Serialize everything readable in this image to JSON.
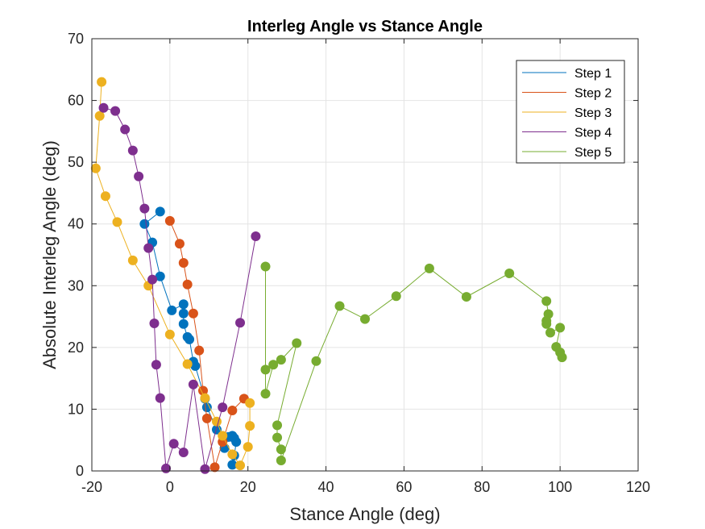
{
  "chart_data": {
    "type": "scatter",
    "title": "Interleg Angle vs Stance Angle",
    "xlabel": "Stance Angle (deg)",
    "ylabel": "Absolute Interleg Angle (deg)",
    "xlim": [
      -20,
      120
    ],
    "ylim": [
      0,
      70
    ],
    "xticks": [
      -20,
      0,
      20,
      40,
      60,
      80,
      100,
      120
    ],
    "yticks": [
      0,
      10,
      20,
      30,
      40,
      50,
      60,
      70
    ],
    "xtick_labels": [
      "-20",
      "0",
      "20",
      "40",
      "60",
      "80",
      "100",
      "120"
    ],
    "ytick_labels": [
      "0",
      "10",
      "20",
      "30",
      "40",
      "50",
      "60",
      "70"
    ],
    "grid": true,
    "legend_position": "top-right",
    "series": [
      {
        "name": "Step 1",
        "color": "#0072BD",
        "points": [
          [
            -2.5,
            42
          ],
          [
            -6.5,
            40
          ],
          [
            -4.5,
            37
          ],
          [
            -2.5,
            31.5
          ],
          [
            0.5,
            26
          ],
          [
            3.5,
            27
          ],
          [
            3.5,
            25.5
          ],
          [
            3.5,
            23.8
          ],
          [
            4.5,
            21.7
          ],
          [
            5,
            21.3
          ],
          [
            6,
            17.7
          ],
          [
            6.5,
            17
          ],
          [
            9,
            11.7
          ],
          [
            9.5,
            10.3
          ],
          [
            12,
            6.7
          ],
          [
            14,
            3.7
          ],
          [
            15,
            5.5
          ],
          [
            16,
            5.7
          ],
          [
            16.5,
            5.3
          ],
          [
            17,
            4.7
          ],
          [
            16.5,
            2.5
          ],
          [
            16,
            1
          ]
        ]
      },
      {
        "name": "Step 2",
        "color": "#D95319",
        "points": [
          [
            0,
            40.5
          ],
          [
            2.5,
            36.8
          ],
          [
            3.5,
            33.7
          ],
          [
            4.5,
            30.2
          ],
          [
            6,
            25.5
          ],
          [
            7.5,
            19.5
          ],
          [
            8.5,
            13
          ],
          [
            9.5,
            8.5
          ],
          [
            11.5,
            0.6
          ],
          [
            13.5,
            4.7
          ],
          [
            16,
            9.8
          ],
          [
            19,
            11.7
          ]
        ]
      },
      {
        "name": "Step 3",
        "color": "#EDB120",
        "points": [
          [
            -17.5,
            63
          ],
          [
            -18,
            57.5
          ],
          [
            -19,
            49
          ],
          [
            -16.5,
            44.5
          ],
          [
            -13.5,
            40.3
          ],
          [
            -9.5,
            34.1
          ],
          [
            -5.5,
            30
          ],
          [
            0,
            22.1
          ],
          [
            4.5,
            17.3
          ],
          [
            9,
            11.8
          ],
          [
            12,
            8
          ],
          [
            13.5,
            5.7
          ],
          [
            16,
            2.7
          ],
          [
            18,
            0.9
          ],
          [
            20,
            3.9
          ],
          [
            20.5,
            7.3
          ],
          [
            20.5,
            11
          ]
        ]
      },
      {
        "name": "Step 4",
        "color": "#7E2F8E",
        "points": [
          [
            -17,
            58.8
          ],
          [
            -14,
            58.3
          ],
          [
            -11.5,
            55.3
          ],
          [
            -9.5,
            51.9
          ],
          [
            -8,
            47.7
          ],
          [
            -6.5,
            42.5
          ],
          [
            -5.5,
            36.1
          ],
          [
            -4.5,
            31
          ],
          [
            -4,
            23.9
          ],
          [
            -3.5,
            17.2
          ],
          [
            -2.5,
            11.8
          ],
          [
            -1,
            0.4
          ],
          [
            1,
            4.4
          ],
          [
            3.5,
            3
          ],
          [
            6,
            14
          ],
          [
            9,
            0.3
          ],
          [
            13.5,
            10.3
          ],
          [
            18,
            24
          ],
          [
            22,
            38
          ]
        ]
      },
      {
        "name": "Step 5",
        "color": "#77AC30",
        "points": [
          [
            24.5,
            33.1
          ],
          [
            24.5,
            16.4
          ],
          [
            24.5,
            12.5
          ],
          [
            26.5,
            17.2
          ],
          [
            28.5,
            18
          ],
          [
            32.5,
            20.7
          ],
          [
            27.5,
            7.4
          ],
          [
            27.5,
            5.4
          ],
          [
            28.5,
            3.5
          ],
          [
            28.5,
            1.7
          ],
          [
            37.5,
            17.8
          ],
          [
            43.5,
            26.7
          ],
          [
            50,
            24.6
          ],
          [
            58,
            28.3
          ],
          [
            66.5,
            32.8
          ],
          [
            76,
            28.2
          ],
          [
            87,
            32
          ],
          [
            96.5,
            27.5
          ],
          [
            97,
            25.4
          ],
          [
            96.5,
            24.3
          ],
          [
            96.5,
            23.8
          ],
          [
            97.5,
            22.4
          ],
          [
            100,
            23.2
          ],
          [
            99,
            20.1
          ],
          [
            100,
            19.2
          ],
          [
            100.5,
            18.4
          ]
        ]
      }
    ]
  }
}
